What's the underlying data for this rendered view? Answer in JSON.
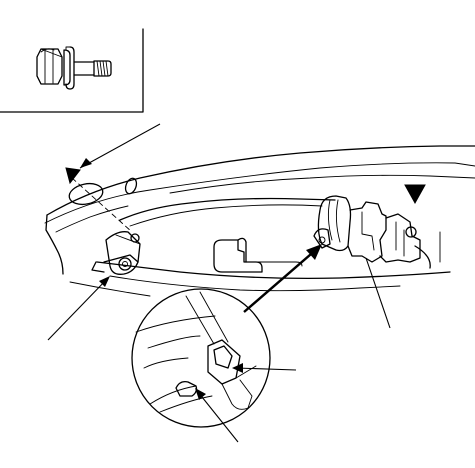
{
  "figure": {
    "type": "service-manual line illustration",
    "text_labels": []
  },
  "parts": {
    "inset_icon": "flange-bolt-icon",
    "markers": [
      "arrow-head-marker",
      "arrow-head-marker"
    ],
    "callouts": [
      "leader-line",
      "leader-line",
      "leader-line",
      "leader-line",
      "leader-line"
    ],
    "detail_view": "magnified-clip-detail"
  },
  "colors": {
    "line": "#000000",
    "background": "#ffffff"
  }
}
